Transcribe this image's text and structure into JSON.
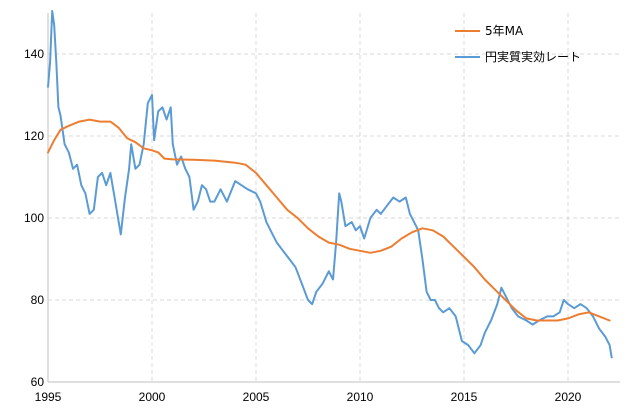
{
  "chart_data": {
    "type": "line",
    "title": "",
    "xlabel": "",
    "ylabel": "",
    "xlim": [
      1995,
      2022.5
    ],
    "ylim": [
      60,
      150
    ],
    "x_ticks": [
      1995,
      2000,
      2005,
      2010,
      2015,
      2020
    ],
    "y_ticks": [
      60,
      80,
      100,
      120,
      140
    ],
    "grid": "dashed, both axes",
    "legend_position": "top-right",
    "series": [
      {
        "name": "5年MA",
        "color": "#ED7D31",
        "points": [
          [
            1995.0,
            116
          ],
          [
            1995.3,
            119
          ],
          [
            1995.6,
            121.5
          ],
          [
            1996.0,
            122.5
          ],
          [
            1996.5,
            123.5
          ],
          [
            1997.0,
            124
          ],
          [
            1997.5,
            123.5
          ],
          [
            1998.0,
            123.5
          ],
          [
            1998.4,
            122
          ],
          [
            1998.8,
            119.5
          ],
          [
            1999.2,
            118.5
          ],
          [
            1999.6,
            117
          ],
          [
            2000.0,
            116.5
          ],
          [
            2000.3,
            116
          ],
          [
            2000.6,
            114.5
          ],
          [
            2001.0,
            114.3
          ],
          [
            2002.0,
            114.2
          ],
          [
            2003.0,
            114
          ],
          [
            2004.0,
            113.5
          ],
          [
            2004.5,
            113
          ],
          [
            2005.0,
            111
          ],
          [
            2005.5,
            108
          ],
          [
            2006.0,
            105
          ],
          [
            2006.5,
            102
          ],
          [
            2007.0,
            100
          ],
          [
            2007.5,
            97.5
          ],
          [
            2008.0,
            95.5
          ],
          [
            2008.5,
            94
          ],
          [
            2009.0,
            93.5
          ],
          [
            2009.5,
            92.5
          ],
          [
            2010.0,
            92
          ],
          [
            2010.5,
            91.5
          ],
          [
            2011.0,
            92
          ],
          [
            2011.5,
            93
          ],
          [
            2012.0,
            95
          ],
          [
            2012.5,
            96.5
          ],
          [
            2013.0,
            97.5
          ],
          [
            2013.5,
            97
          ],
          [
            2014.0,
            95.5
          ],
          [
            2014.5,
            93
          ],
          [
            2015.0,
            90.5
          ],
          [
            2015.5,
            88
          ],
          [
            2016.0,
            85
          ],
          [
            2016.5,
            82.5
          ],
          [
            2017.0,
            80
          ],
          [
            2017.5,
            77.5
          ],
          [
            2018.0,
            75.5
          ],
          [
            2018.5,
            75
          ],
          [
            2019.0,
            75
          ],
          [
            2019.5,
            75
          ],
          [
            2020.0,
            75.5
          ],
          [
            2020.5,
            76.5
          ],
          [
            2021.0,
            77
          ],
          [
            2021.5,
            76
          ],
          [
            2022.0,
            75
          ]
        ]
      },
      {
        "name": "円実質実効レート",
        "color": "#5B9BD5",
        "points": [
          [
            1995.0,
            132
          ],
          [
            1995.1,
            138
          ],
          [
            1995.2,
            151
          ],
          [
            1995.3,
            147
          ],
          [
            1995.4,
            138
          ],
          [
            1995.5,
            127
          ],
          [
            1995.6,
            125
          ],
          [
            1995.8,
            118
          ],
          [
            1996.0,
            116
          ],
          [
            1996.2,
            112
          ],
          [
            1996.4,
            113
          ],
          [
            1996.6,
            108
          ],
          [
            1996.8,
            106
          ],
          [
            1997.0,
            101
          ],
          [
            1997.2,
            102
          ],
          [
            1997.4,
            110
          ],
          [
            1997.6,
            111
          ],
          [
            1997.8,
            108
          ],
          [
            1998.0,
            111
          ],
          [
            1998.2,
            105
          ],
          [
            1998.4,
            99
          ],
          [
            1998.5,
            96
          ],
          [
            1998.7,
            105
          ],
          [
            1998.9,
            112
          ],
          [
            1999.0,
            118
          ],
          [
            1999.2,
            112
          ],
          [
            1999.4,
            113
          ],
          [
            1999.6,
            118
          ],
          [
            1999.8,
            128
          ],
          [
            2000.0,
            130
          ],
          [
            2000.1,
            119
          ],
          [
            2000.3,
            126
          ],
          [
            2000.5,
            127
          ],
          [
            2000.7,
            124
          ],
          [
            2000.9,
            127
          ],
          [
            2001.0,
            118
          ],
          [
            2001.2,
            113
          ],
          [
            2001.4,
            115
          ],
          [
            2001.6,
            112
          ],
          [
            2001.8,
            110
          ],
          [
            2002.0,
            102
          ],
          [
            2002.2,
            104
          ],
          [
            2002.4,
            108
          ],
          [
            2002.6,
            107
          ],
          [
            2002.8,
            104
          ],
          [
            2003.0,
            104
          ],
          [
            2003.3,
            107
          ],
          [
            2003.6,
            104
          ],
          [
            2004.0,
            109
          ],
          [
            2004.3,
            108
          ],
          [
            2004.6,
            107
          ],
          [
            2005.0,
            106
          ],
          [
            2005.2,
            104
          ],
          [
            2005.5,
            99
          ],
          [
            2005.8,
            96
          ],
          [
            2006.0,
            94
          ],
          [
            2006.3,
            92
          ],
          [
            2006.6,
            90
          ],
          [
            2006.9,
            88
          ],
          [
            2007.2,
            84
          ],
          [
            2007.5,
            80
          ],
          [
            2007.7,
            79
          ],
          [
            2007.9,
            82
          ],
          [
            2008.2,
            84
          ],
          [
            2008.5,
            87
          ],
          [
            2008.7,
            85
          ],
          [
            2008.85,
            94
          ],
          [
            2009.0,
            106
          ],
          [
            2009.1,
            104
          ],
          [
            2009.3,
            98
          ],
          [
            2009.6,
            99
          ],
          [
            2009.8,
            97
          ],
          [
            2010.0,
            98
          ],
          [
            2010.2,
            95
          ],
          [
            2010.5,
            100
          ],
          [
            2010.8,
            102
          ],
          [
            2011.0,
            101
          ],
          [
            2011.3,
            103
          ],
          [
            2011.6,
            105
          ],
          [
            2011.9,
            104
          ],
          [
            2012.2,
            105
          ],
          [
            2012.4,
            101
          ],
          [
            2012.6,
            99
          ],
          [
            2012.8,
            97
          ],
          [
            2013.0,
            90
          ],
          [
            2013.2,
            82
          ],
          [
            2013.4,
            80
          ],
          [
            2013.6,
            80
          ],
          [
            2013.8,
            78
          ],
          [
            2014.0,
            77
          ],
          [
            2014.3,
            78
          ],
          [
            2014.6,
            76
          ],
          [
            2014.9,
            70
          ],
          [
            2015.2,
            69
          ],
          [
            2015.5,
            67
          ],
          [
            2015.8,
            69
          ],
          [
            2016.0,
            72
          ],
          [
            2016.3,
            75
          ],
          [
            2016.6,
            79
          ],
          [
            2016.8,
            83
          ],
          [
            2017.0,
            81
          ],
          [
            2017.3,
            78
          ],
          [
            2017.6,
            76
          ],
          [
            2018.0,
            75
          ],
          [
            2018.3,
            74
          ],
          [
            2018.6,
            75
          ],
          [
            2019.0,
            76
          ],
          [
            2019.3,
            76
          ],
          [
            2019.6,
            77
          ],
          [
            2019.8,
            80
          ],
          [
            2020.0,
            79
          ],
          [
            2020.3,
            78
          ],
          [
            2020.6,
            79
          ],
          [
            2020.9,
            78
          ],
          [
            2021.2,
            76
          ],
          [
            2021.5,
            73
          ],
          [
            2021.8,
            71
          ],
          [
            2022.0,
            69
          ],
          [
            2022.1,
            66
          ]
        ]
      }
    ]
  }
}
